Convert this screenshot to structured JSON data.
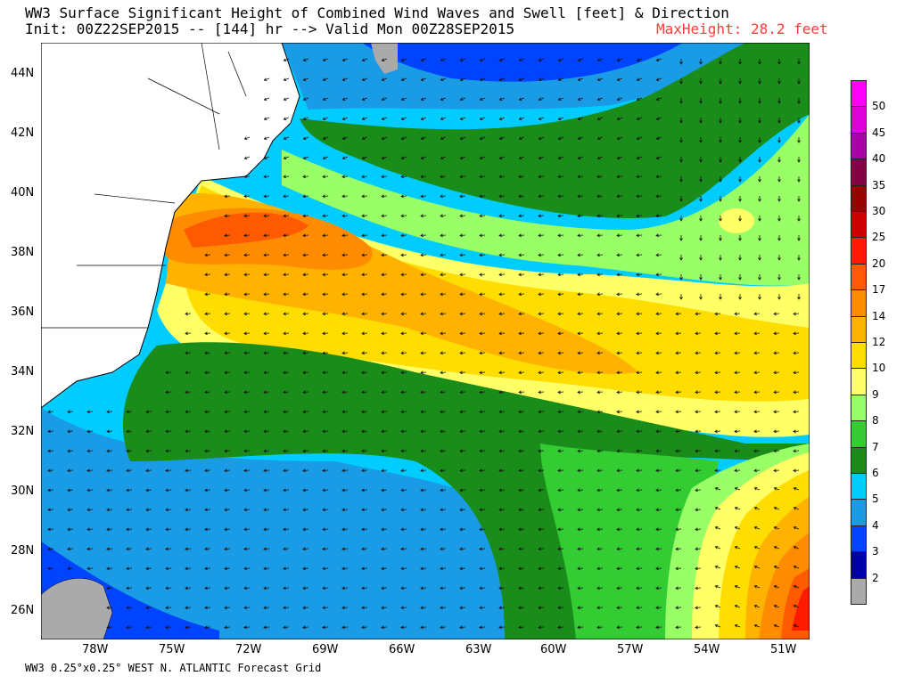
{
  "title": {
    "line1": "WW3 Surface Significant Height of Combined Wind Waves and Swell [feet] & Direction",
    "line2": "Init: 00Z22SEP2015 -- [144] hr --> Valid Mon 00Z28SEP2015",
    "max_height": "MaxHeight:  28.2 feet"
  },
  "footer": "WW3 0.25°x0.25° WEST N. ATLANTIC Forecast Grid",
  "axes": {
    "lat_labels": [
      "44N",
      "42N",
      "40N",
      "38N",
      "36N",
      "34N",
      "32N",
      "30N",
      "28N",
      "26N"
    ],
    "lon_labels": [
      "78W",
      "75W",
      "72W",
      "69W",
      "66W",
      "63W",
      "60W",
      "57W",
      "54W",
      "51W"
    ]
  },
  "colorbar": {
    "labels": [
      "50",
      "45",
      "40",
      "35",
      "30",
      "25",
      "20",
      "17",
      "14",
      "12",
      "10",
      "9",
      "8",
      "7",
      "6",
      "5",
      "4",
      "3",
      "2"
    ],
    "colors": [
      "#ff00ff",
      "#dd00dd",
      "#aa00aa",
      "#880044",
      "#990000",
      "#cc0000",
      "#ff1a00",
      "#ff5a00",
      "#ff8c00",
      "#ffb300",
      "#ffdd00",
      "#ffff66",
      "#99ff66",
      "#33cc33",
      "#1a8c1a",
      "#00ccff",
      "#1a9be6",
      "#0044ff",
      "#0000aa",
      "#aaaaaa"
    ]
  }
}
